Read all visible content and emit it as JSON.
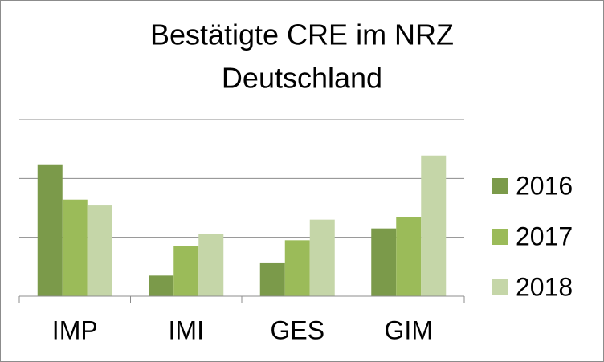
{
  "chart_data": {
    "type": "bar",
    "title": [
      "Bestätigte CRE im NRZ",
      "Deutschland"
    ],
    "categories": [
      "IMP",
      "IMI",
      "GES",
      "GIM"
    ],
    "series": [
      {
        "name": "2016",
        "color": "#7b9a4a",
        "values": [
          2.24,
          0.35,
          0.56,
          1.15
        ]
      },
      {
        "name": "2017",
        "color": "#9bbb59",
        "values": [
          1.64,
          0.85,
          0.95,
          1.35
        ]
      },
      {
        "name": "2018",
        "color": "#c5d6a8",
        "values": [
          1.54,
          1.05,
          1.3,
          2.39
        ]
      }
    ],
    "ylim": [
      0,
      3
    ],
    "yticks": [
      0,
      1,
      2,
      3
    ],
    "grid": true,
    "legend": "right"
  }
}
